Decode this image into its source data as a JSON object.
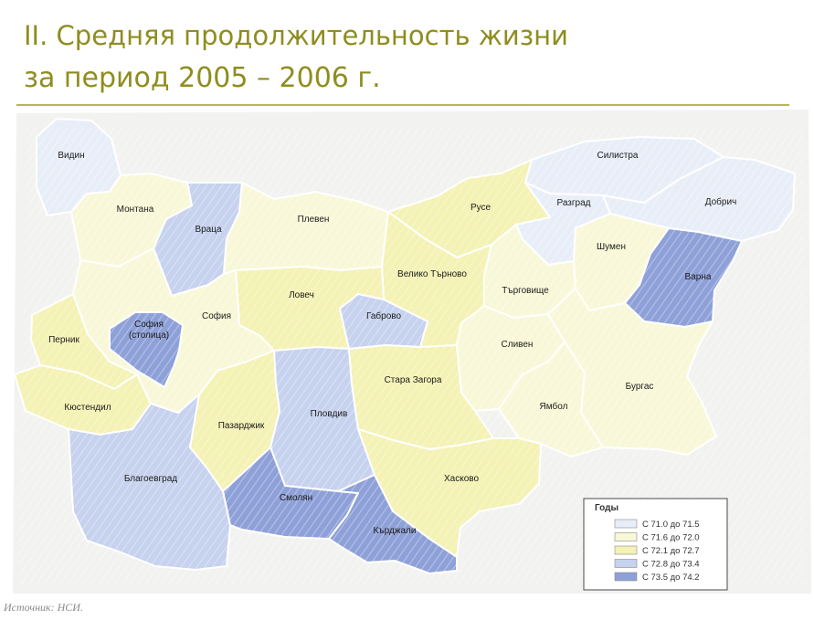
{
  "title_line1": "II. Средняя продолжительность жизни",
  "title_line2": "за период 2005 – 2006 г.",
  "source": "Источник: НСИ.",
  "colors": {
    "title": "#8f8d1f",
    "c1": "#e8eef8",
    "c2": "#f8f8d8",
    "c3": "#f4f2b4",
    "c4": "#c6d2ee",
    "c5": "#8ea0d8"
  },
  "legend": {
    "title": "Годы",
    "items": [
      {
        "label": "С  71.0  до  71.5",
        "class": "c1"
      },
      {
        "label": "С  71.6  до  72.0",
        "class": "c2"
      },
      {
        "label": "С  72.1  до  72.7",
        "class": "c3"
      },
      {
        "label": "С  72.8  до  73.4",
        "class": "c4"
      },
      {
        "label": "С  73.5  до  74.2",
        "class": "c5"
      }
    ]
  },
  "regions": {
    "vidin": "Видин",
    "montana": "Монтана",
    "vratsa": "Враца",
    "pleven": "Плевен",
    "ruse": "Русе",
    "silistra": "Силистра",
    "razgrad": "Разград",
    "dobrich": "Добрич",
    "shumen": "Шумен",
    "varna": "Варна",
    "veliko": "Велико Търново",
    "targovishte": "Търговище",
    "lovech": "Ловеч",
    "gabrovo": "Габрово",
    "sofia_city": "София",
    "sofia_city_2": "(столица)",
    "sofia": "София",
    "pernik": "Перник",
    "kyustendil": "Кюстендил",
    "sliven": "Сливен",
    "stara_zagora": "Стара Загора",
    "burgas": "Бургас",
    "yambol": "Ямбол",
    "pazardzhik": "Пазарджик",
    "plovdiv": "Пловдив",
    "blagoevgrad": "Благоевград",
    "haskovo": "Хасково",
    "smolyan": "Смолян",
    "kardzhali": "Кърджали"
  },
  "region_class": {
    "vidin": "c1",
    "montana": "c2",
    "vratsa": "c4",
    "pleven": "c2",
    "ruse": "c3",
    "silistra": "c1",
    "razgrad": "c1",
    "dobrich": "c1",
    "shumen": "c2",
    "varna": "c5",
    "veliko": "c3",
    "targovishte": "c2",
    "lovech": "c3",
    "gabrovo": "c4",
    "sofia_city": "c5",
    "sofia": "c2",
    "pernik": "c3",
    "kyustendil": "c3",
    "sliven": "c2",
    "stara_zagora": "c3",
    "burgas": "c2",
    "yambol": "c2",
    "pazardzhik": "c3",
    "plovdiv": "c4",
    "blagoevgrad": "c4",
    "haskovo": "c3",
    "smolyan": "c5",
    "kardzhali": "c5"
  }
}
